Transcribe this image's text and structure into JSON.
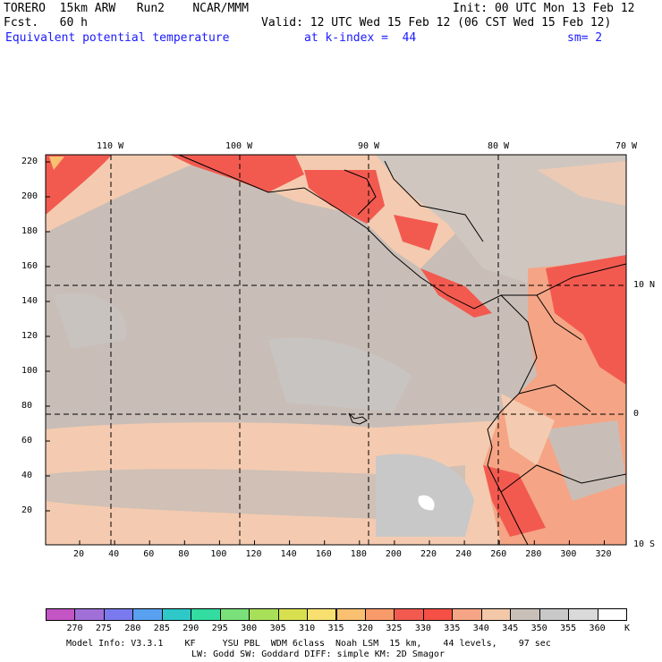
{
  "header": {
    "left_line1": "TORERO  15km ARW   Run2    NCAR/MMM",
    "left_line2": "Fcst.   60 h",
    "right_line1": "Init: 00 UTC Mon 13 Feb 12",
    "right_line2": "Valid: 12 UTC Wed 15 Feb 12 (06 CST Wed 15 Feb 12)",
    "field_name": "Equivalent potential temperature",
    "level": "at k-index =  44",
    "smoothing": "sm= 2"
  },
  "map": {
    "longitude_labels": [
      "110 W",
      "100 W",
      "90 W",
      "80 W",
      "70 W"
    ],
    "latitude_labels": [
      "10 N",
      "0",
      "10 S"
    ],
    "y_grid_labels": [
      "220",
      "200",
      "180",
      "160",
      "140",
      "120",
      "100",
      "80",
      "60",
      "40",
      "20"
    ],
    "x_grid_labels": [
      "20",
      "40",
      "60",
      "80",
      "100",
      "120",
      "140",
      "160",
      "180",
      "200",
      "220",
      "240",
      "260",
      "280",
      "300",
      "320"
    ]
  },
  "colorbar": {
    "unit": "K",
    "levels": [
      "270",
      "275",
      "280",
      "285",
      "290",
      "295",
      "300",
      "305",
      "310",
      "315",
      "320",
      "325",
      "330",
      "335",
      "340",
      "345",
      "350",
      "355",
      "360"
    ],
    "colors": [
      "#c455c4",
      "#a070d8",
      "#7a7aee",
      "#5aa0f0",
      "#2ec8c8",
      "#33dca0",
      "#7ae07a",
      "#a8e05a",
      "#d8e050",
      "#f8e070",
      "#f8c070",
      "#f89a6a",
      "#f25a50",
      "#f55045",
      "#f5a585",
      "#f2c8a8",
      "#c8bfb8",
      "#c8c8c8",
      "#dadada",
      "#ffffff"
    ]
  },
  "footer": {
    "line1": "Model Info: V3.3.1    KF     YSU PBL  WDM 6class  Noah LSM  15 km,    44 levels,    97 sec",
    "line2": "LW: Godd SW: Goddard DIFF: simple KM: 2D Smagor"
  }
}
